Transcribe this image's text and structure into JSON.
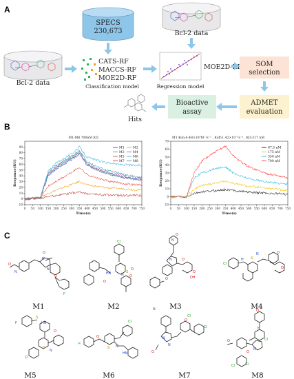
{
  "panel_a": {
    "letter": "A",
    "database": {
      "name": "SPECS",
      "count": "230,673"
    },
    "bcl2_top_label": "Bcl-2 data",
    "bcl2_left_label": "Bcl-2 data",
    "classification_models": [
      "CATS-RF",
      "MACCS-RF",
      "MOE2D-RF"
    ],
    "classification_caption": "Classification model",
    "regression_caption": "Regression model",
    "regression_model_name": "MOE2D-RF",
    "som_label": [
      "SOM",
      "selection"
    ],
    "admet_label": [
      "ADMET",
      "evaluation"
    ],
    "bioassay_label": [
      "Bioactive",
      "assay"
    ],
    "hits_label": "Hits",
    "colors": {
      "som_box": "#fde3d6",
      "admet_box": "#fdf2cf",
      "bioassay_box": "#d9f0e2",
      "arrow": "#8ec6ea",
      "database": "#8ec6ea"
    }
  },
  "panel_b": {
    "letter": "B",
    "left_chart_title": "M1-M8  700nM KD",
    "right_chart_title": "M1  Kon:4.48×10³M⁻¹s⁻¹ , Koff:1.42×10⁻³s⁻¹ , KD:317 nM"
  },
  "chart_data": [
    {
      "type": "line",
      "title": "M1-M8  700nM KD",
      "xlabel": "Time(s)",
      "ylabel": "Response(RU)",
      "xlim": [
        0,
        750
      ],
      "ylim": [
        -10,
        100
      ],
      "xticks": [
        0,
        50,
        100,
        150,
        200,
        250,
        300,
        350,
        400,
        450,
        500,
        550,
        600,
        650,
        700,
        750
      ],
      "yticks": [
        -10,
        0,
        10,
        20,
        30,
        40,
        50,
        60,
        70,
        80,
        90
      ],
      "legend_position": "top-right",
      "x": [
        0,
        100,
        150,
        200,
        250,
        300,
        350,
        400,
        450,
        500,
        550,
        600,
        650,
        700,
        750
      ],
      "series": [
        {
          "name": "M1",
          "color": "#1e5bd8",
          "values": [
            0,
            2,
            40,
            52,
            60,
            68,
            78,
            58,
            52,
            47,
            43,
            40,
            37,
            35,
            33
          ]
        },
        {
          "name": "M2",
          "color": "#f0a020",
          "values": [
            0,
            1,
            10,
            15,
            20,
            25,
            30,
            24,
            22,
            20,
            19,
            18,
            17,
            16,
            15
          ]
        },
        {
          "name": "M3",
          "color": "#2aa198",
          "values": [
            0,
            2,
            45,
            58,
            66,
            74,
            84,
            64,
            58,
            52,
            48,
            45,
            42,
            39,
            37
          ]
        },
        {
          "name": "M4",
          "color": "#9b59b6",
          "values": [
            0,
            2,
            42,
            54,
            62,
            70,
            80,
            60,
            54,
            49,
            45,
            42,
            39,
            37,
            35
          ]
        },
        {
          "name": "M5",
          "color": "#e74c3c",
          "values": [
            0,
            1,
            22,
            30,
            38,
            46,
            55,
            42,
            37,
            33,
            30,
            28,
            26,
            25,
            24
          ]
        },
        {
          "name": "M6",
          "color": "#3bb0e0",
          "values": [
            0,
            2,
            48,
            62,
            70,
            78,
            90,
            72,
            68,
            64,
            62,
            60,
            59,
            58,
            58
          ]
        },
        {
          "name": "M7",
          "color": "#c0392b",
          "values": [
            0,
            1,
            4,
            6,
            8,
            10,
            12,
            9,
            8,
            7,
            7,
            6,
            6,
            6,
            6
          ]
        },
        {
          "name": "M8",
          "color": "#7a7a7a",
          "values": [
            0,
            2,
            44,
            56,
            64,
            72,
            82,
            60,
            52,
            46,
            42,
            39,
            36,
            34,
            32
          ]
        }
      ]
    },
    {
      "type": "line",
      "title": "M1  Kon:4.48×10³M⁻¹s⁻¹ , Koff:1.42×10⁻³s⁻¹ , KD:317 nM",
      "xlabel": "Time(s)",
      "ylabel": "Response(RU)",
      "xlim": [
        0,
        750
      ],
      "ylim": [
        -10,
        70
      ],
      "xticks": [
        0,
        50,
        100,
        150,
        200,
        250,
        300,
        350,
        400,
        450,
        500,
        550,
        600,
        650,
        700,
        750
      ],
      "yticks": [
        -10,
        0,
        10,
        20,
        30,
        40,
        50,
        60,
        70
      ],
      "legend_position": "top-right",
      "x": [
        0,
        100,
        150,
        200,
        250,
        300,
        350,
        400,
        450,
        500,
        550,
        600,
        650,
        700,
        750
      ],
      "series": [
        {
          "name": "87.5 nM",
          "color": "#111111",
          "values": [
            0,
            0,
            4,
            6,
            7,
            8,
            9,
            8,
            7,
            6,
            5,
            5,
            4,
            4,
            3
          ]
        },
        {
          "name": "175 nM",
          "color": "#f0c000",
          "values": [
            0,
            0,
            10,
            14,
            16,
            18,
            20,
            17,
            15,
            13,
            12,
            11,
            10,
            9,
            8
          ]
        },
        {
          "name": "350 nM",
          "color": "#1fb8e0",
          "values": [
            0,
            0,
            24,
            30,
            33,
            36,
            38,
            30,
            26,
            23,
            21,
            19,
            18,
            17,
            16
          ]
        },
        {
          "name": "700 nM",
          "color": "#ff2a2a",
          "values": [
            0,
            0,
            30,
            45,
            52,
            58,
            64,
            52,
            44,
            38,
            34,
            30,
            28,
            26,
            24
          ]
        }
      ]
    }
  ],
  "panel_c": {
    "letter": "C",
    "molecules": [
      {
        "id": "M1"
      },
      {
        "id": "M2"
      },
      {
        "id": "M3"
      },
      {
        "id": "M4"
      },
      {
        "id": "M5"
      },
      {
        "id": "M6"
      },
      {
        "id": "M7"
      },
      {
        "id": "M8"
      }
    ]
  }
}
